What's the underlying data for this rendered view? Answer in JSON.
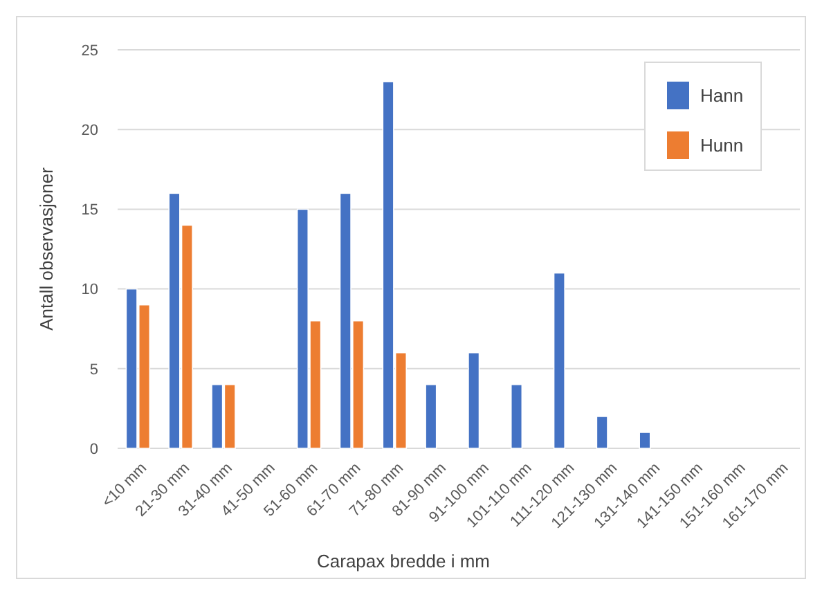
{
  "chart_data": {
    "type": "bar",
    "xlabel": "Carapax bredde i mm",
    "ylabel": "Antall observasjoner",
    "categories": [
      "<10 mm",
      "21-30 mm",
      "31-40 mm",
      "41-50 mm",
      "51-60 mm",
      "61-70 mm",
      "71-80 mm",
      "81-90 mm",
      "91-100 mm",
      "101-110 mm",
      "111-120 mm",
      "121-130 mm",
      "131-140 mm",
      "141-150 mm",
      "151-160 mm",
      "161-170 mm"
    ],
    "series": [
      {
        "name": "Hann",
        "color": "#4472c4",
        "values": [
          10,
          16,
          4,
          null,
          15,
          16,
          23,
          4,
          6,
          4,
          11,
          2,
          1,
          null,
          null,
          null
        ]
      },
      {
        "name": "Hunn",
        "color": "#ed7d31",
        "values": [
          9,
          14,
          4,
          null,
          8,
          8,
          6,
          null,
          null,
          null,
          null,
          null,
          null,
          null,
          null,
          null
        ]
      }
    ],
    "ylim": [
      0,
      25
    ],
    "yticks": [
      0,
      5,
      10,
      15,
      20,
      25
    ],
    "grid": "y",
    "legend": "top right"
  }
}
